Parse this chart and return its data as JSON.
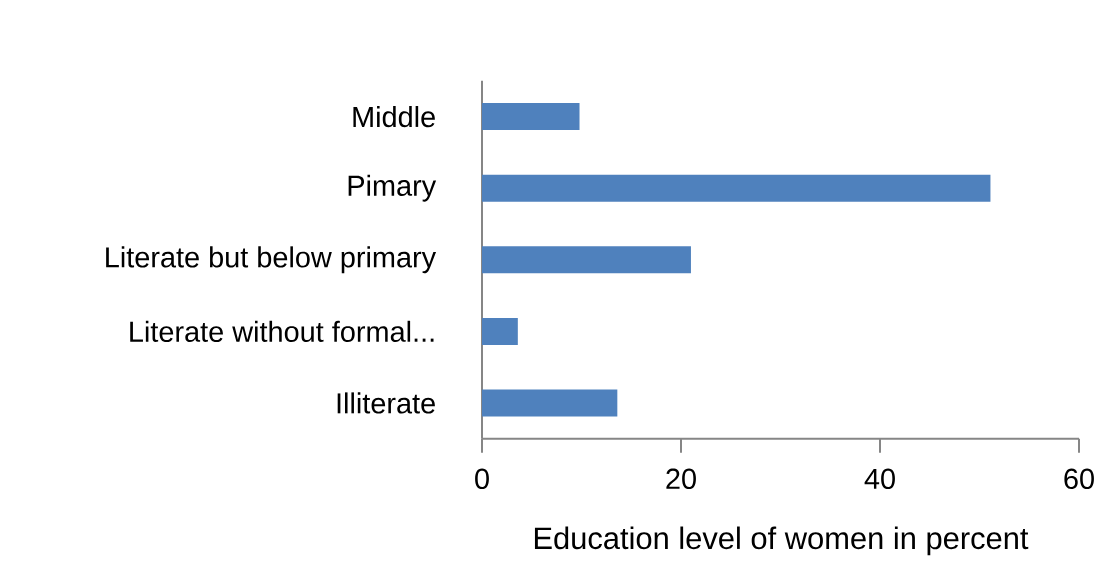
{
  "chart_data": {
    "type": "bar",
    "orientation": "horizontal",
    "xlabel": "Education level of women in percent",
    "categories": [
      "Middle",
      "Pimary",
      "Literate but below primary",
      "Literate without formal...",
      "Illiterate"
    ],
    "values": [
      9.8,
      51.1,
      21.0,
      3.6,
      13.6
    ],
    "color": "#4f81bd",
    "xlim": [
      0,
      60
    ],
    "xticks": [
      0,
      20,
      40,
      60
    ],
    "grid": false
  }
}
